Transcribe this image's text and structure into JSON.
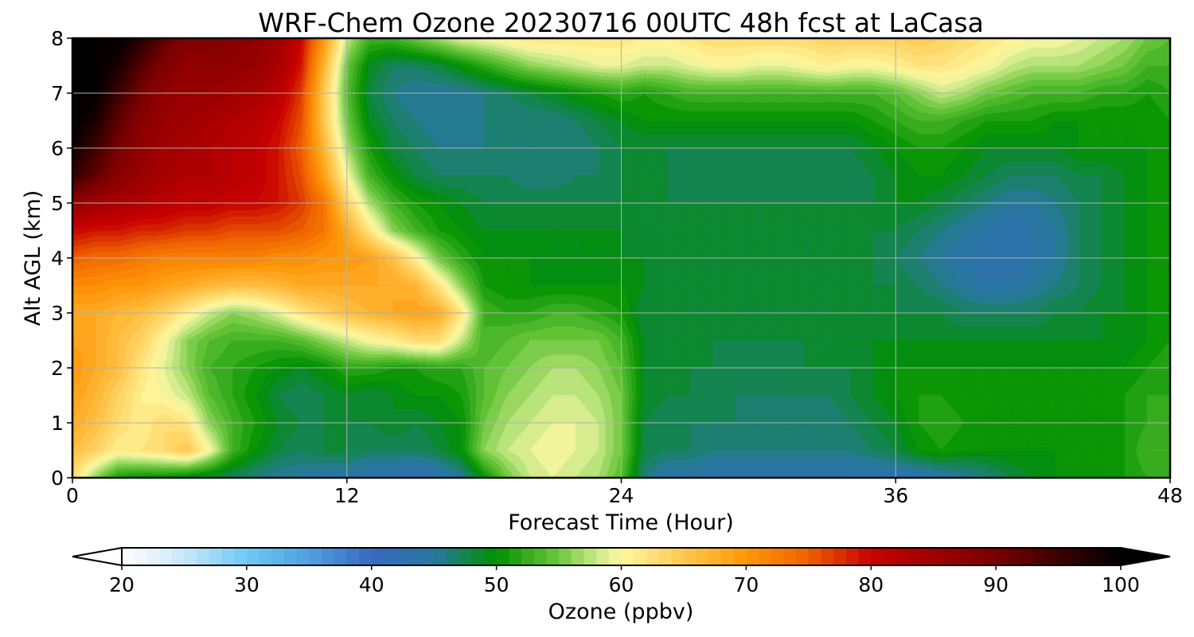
{
  "chart_data": {
    "type": "heatmap",
    "title": "WRF-Chem Ozone  20230716 00UTC 48h fcst at LaCasa",
    "xlabel": "Forecast Time (Hour)",
    "ylabel": "Alt AGL (km)",
    "xlim": [
      0,
      48
    ],
    "ylim": [
      0,
      8
    ],
    "x_ticks": [
      "0",
      "12",
      "24",
      "36",
      "48"
    ],
    "y_ticks": [
      "0",
      "1",
      "2",
      "3",
      "4",
      "5",
      "6",
      "7",
      "8"
    ],
    "grid": true,
    "x": [
      0,
      1,
      2,
      3,
      4,
      5,
      6,
      7,
      8,
      9,
      10,
      11,
      12,
      13,
      14,
      15,
      16,
      17,
      18,
      19,
      20,
      21,
      22,
      23,
      24,
      25,
      26,
      27,
      28,
      29,
      30,
      31,
      32,
      33,
      34,
      35,
      36,
      37,
      38,
      39,
      40,
      41,
      42,
      43,
      44,
      45,
      46,
      47,
      48
    ],
    "y": [
      0,
      0.5,
      1,
      1.5,
      2,
      2.5,
      3,
      3.5,
      4,
      4.5,
      5,
      5.5,
      6,
      6.5,
      7,
      7.5,
      8
    ],
    "values": [
      [
        63,
        56,
        51,
        50,
        50,
        49,
        48,
        47,
        46,
        45,
        45,
        44,
        44,
        43,
        43,
        42,
        43,
        45,
        50,
        55,
        58,
        59,
        58,
        57,
        54,
        46,
        44,
        44,
        43,
        43,
        43,
        43,
        43,
        43,
        43,
        43,
        43,
        43,
        44,
        45,
        46,
        48,
        49,
        50,
        50,
        50,
        51,
        52,
        53
      ],
      [
        66,
        64,
        61,
        62,
        63,
        65,
        60,
        53,
        50,
        48,
        47,
        48,
        48,
        47,
        47,
        47,
        48,
        50,
        56,
        58,
        59,
        60,
        59,
        58,
        55,
        48,
        47,
        47,
        46,
        46,
        46,
        46,
        46,
        46,
        46,
        47,
        48,
        50,
        51,
        50,
        50,
        50,
        50,
        50,
        50,
        50,
        51,
        53,
        53
      ],
      [
        68,
        66,
        63,
        61,
        63,
        62,
        56,
        53,
        51,
        49,
        48,
        48,
        48,
        48,
        49,
        48,
        49,
        50,
        55,
        57,
        58,
        59,
        59,
        58,
        55,
        48,
        47,
        47,
        47,
        47,
        46,
        46,
        46,
        46,
        47,
        48,
        49,
        51,
        52,
        51,
        50,
        50,
        50,
        50,
        50,
        50,
        51,
        52,
        53
      ],
      [
        69,
        67,
        64,
        61,
        60,
        58,
        54,
        52,
        50,
        48,
        47,
        48,
        49,
        48,
        49,
        50,
        50,
        51,
        54,
        56,
        57,
        58,
        58,
        57,
        55,
        49,
        48,
        48,
        47,
        47,
        47,
        47,
        47,
        47,
        48,
        49,
        50,
        51,
        51,
        50,
        50,
        50,
        50,
        50,
        50,
        50,
        51,
        52,
        52
      ],
      [
        70,
        68,
        66,
        62,
        59,
        56,
        53,
        52,
        51,
        50,
        49,
        50,
        52,
        52,
        51,
        51,
        52,
        52,
        54,
        55,
        56,
        57,
        57,
        56,
        54,
        49,
        48,
        48,
        48,
        47,
        47,
        47,
        48,
        48,
        48,
        49,
        50,
        50,
        50,
        50,
        50,
        50,
        50,
        50,
        50,
        50,
        50,
        51,
        52
      ],
      [
        69,
        68,
        66,
        64,
        60,
        56,
        54,
        53,
        53,
        53,
        54,
        56,
        58,
        60,
        61,
        63,
        63,
        58,
        53,
        54,
        55,
        55,
        55,
        55,
        53,
        49,
        48,
        48,
        48,
        48,
        48,
        48,
        48,
        48,
        49,
        49,
        49,
        49,
        49,
        49,
        49,
        49,
        49,
        49,
        49,
        49,
        49,
        50,
        51
      ],
      [
        68,
        68,
        67,
        66,
        64,
        61,
        58,
        56,
        57,
        59,
        62,
        64,
        66,
        67,
        68,
        69,
        68,
        62,
        53,
        52,
        52,
        53,
        53,
        52,
        51,
        48,
        48,
        48,
        48,
        48,
        48,
        48,
        48,
        48,
        48,
        48,
        48,
        48,
        48,
        47,
        47,
        47,
        47,
        48,
        48,
        49,
        49,
        50,
        51
      ],
      [
        71,
        71,
        70,
        70,
        69,
        68,
        67,
        66,
        66,
        67,
        68,
        68,
        68,
        68,
        68,
        67,
        62,
        56,
        51,
        50,
        50,
        50,
        50,
        50,
        50,
        49,
        48,
        48,
        48,
        48,
        48,
        48,
        48,
        48,
        48,
        48,
        48,
        47,
        46,
        45,
        44,
        44,
        45,
        46,
        47,
        48,
        49,
        50,
        51
      ],
      [
        75,
        74,
        74,
        73,
        72,
        72,
        72,
        72,
        72,
        71,
        71,
        70,
        70,
        69,
        66,
        61,
        55,
        52,
        50,
        50,
        50,
        49,
        49,
        49,
        49,
        49,
        48,
        48,
        48,
        48,
        48,
        48,
        48,
        48,
        48,
        48,
        47,
        46,
        45,
        44,
        43,
        43,
        44,
        45,
        47,
        48,
        49,
        50,
        51
      ],
      [
        80,
        79,
        79,
        78,
        78,
        77,
        77,
        76,
        76,
        76,
        75,
        73,
        68,
        62,
        56,
        53,
        51,
        50,
        49,
        49,
        49,
        49,
        49,
        49,
        49,
        48,
        48,
        48,
        48,
        48,
        48,
        48,
        48,
        48,
        48,
        48,
        48,
        47,
        46,
        45,
        44,
        43,
        44,
        45,
        47,
        48,
        49,
        50,
        51
      ],
      [
        87,
        85,
        84,
        83,
        82,
        81,
        81,
        80,
        80,
        79,
        77,
        73,
        64,
        57,
        53,
        51,
        50,
        49,
        48,
        48,
        48,
        48,
        48,
        48,
        48,
        48,
        48,
        48,
        48,
        48,
        48,
        48,
        48,
        48,
        48,
        48,
        49,
        49,
        48,
        47,
        46,
        45,
        45,
        46,
        47,
        48,
        49,
        50,
        51
      ],
      [
        96,
        92,
        88,
        86,
        84,
        83,
        83,
        82,
        81,
        79,
        76,
        69,
        60,
        53,
        50,
        48,
        47,
        47,
        47,
        47,
        46,
        46,
        47,
        47,
        48,
        48,
        48,
        47,
        47,
        47,
        47,
        47,
        47,
        47,
        47,
        48,
        49,
        50,
        50,
        49,
        48,
        47,
        47,
        47,
        48,
        48,
        49,
        50,
        51
      ],
      [
        99,
        95,
        90,
        87,
        85,
        84,
        83,
        82,
        81,
        79,
        75,
        67,
        57,
        51,
        48,
        47,
        46,
        46,
        46,
        46,
        46,
        46,
        46,
        47,
        48,
        48,
        48,
        48,
        48,
        48,
        48,
        48,
        48,
        48,
        48,
        49,
        50,
        51,
        51,
        50,
        49,
        49,
        49,
        49,
        50,
        50,
        50,
        50,
        51
      ],
      [
        100,
        98,
        92,
        88,
        86,
        85,
        84,
        83,
        82,
        80,
        76,
        65,
        55,
        49,
        47,
        46,
        45,
        45,
        46,
        46,
        46,
        46,
        47,
        48,
        49,
        50,
        50,
        50,
        50,
        50,
        50,
        50,
        50,
        50,
        50,
        51,
        52,
        53,
        53,
        52,
        51,
        51,
        51,
        50,
        50,
        50,
        50,
        50,
        51
      ],
      [
        100,
        100,
        95,
        90,
        87,
        86,
        86,
        85,
        84,
        82,
        77,
        65,
        54,
        48,
        46,
        45,
        45,
        45,
        46,
        47,
        48,
        49,
        50,
        51,
        52,
        51,
        52,
        53,
        53,
        53,
        53,
        53,
        53,
        53,
        53,
        53,
        54,
        56,
        58,
        57,
        55,
        54,
        53,
        53,
        53,
        52,
        52,
        51,
        52
      ],
      [
        100,
        100,
        98,
        93,
        89,
        87,
        87,
        87,
        86,
        84,
        79,
        67,
        55,
        49,
        47,
        47,
        48,
        50,
        52,
        54,
        56,
        57,
        58,
        59,
        59,
        58,
        58,
        59,
        60,
        60,
        59,
        59,
        60,
        61,
        60,
        60,
        61,
        62,
        62,
        61,
        60,
        58,
        57,
        57,
        57,
        56,
        55,
        53,
        53
      ],
      [
        100,
        100,
        100,
        97,
        92,
        89,
        89,
        88,
        87,
        85,
        80,
        70,
        58,
        53,
        53,
        55,
        57,
        59,
        60,
        61,
        62,
        62,
        62,
        62,
        62,
        61,
        61,
        62,
        63,
        63,
        63,
        63,
        63,
        64,
        64,
        64,
        64,
        65,
        64,
        63,
        62,
        61,
        60,
        60,
        59,
        58,
        57,
        55,
        54
      ]
    ],
    "colorbar": {
      "label": "Ozone  (ppbv)",
      "min": 20,
      "max": 100,
      "step": 1,
      "extend": "both",
      "ticks": [
        "20",
        "30",
        "40",
        "50",
        "60",
        "70",
        "80",
        "90",
        "100"
      ],
      "color_stops": [
        [
          20,
          "#ffffff"
        ],
        [
          25,
          "#c8e8f8"
        ],
        [
          30,
          "#6ec8f4"
        ],
        [
          35,
          "#4fa0e0"
        ],
        [
          40,
          "#3868c0"
        ],
        [
          45,
          "#2878a0"
        ],
        [
          50,
          "#009000"
        ],
        [
          55,
          "#6cc83c"
        ],
        [
          58,
          "#c8e888"
        ],
        [
          60,
          "#fff8a0"
        ],
        [
          65,
          "#ffc850"
        ],
        [
          70,
          "#ff9808"
        ],
        [
          75,
          "#ee6000"
        ],
        [
          80,
          "#c80000"
        ],
        [
          90,
          "#780000"
        ],
        [
          100,
          "#000000"
        ]
      ]
    }
  }
}
